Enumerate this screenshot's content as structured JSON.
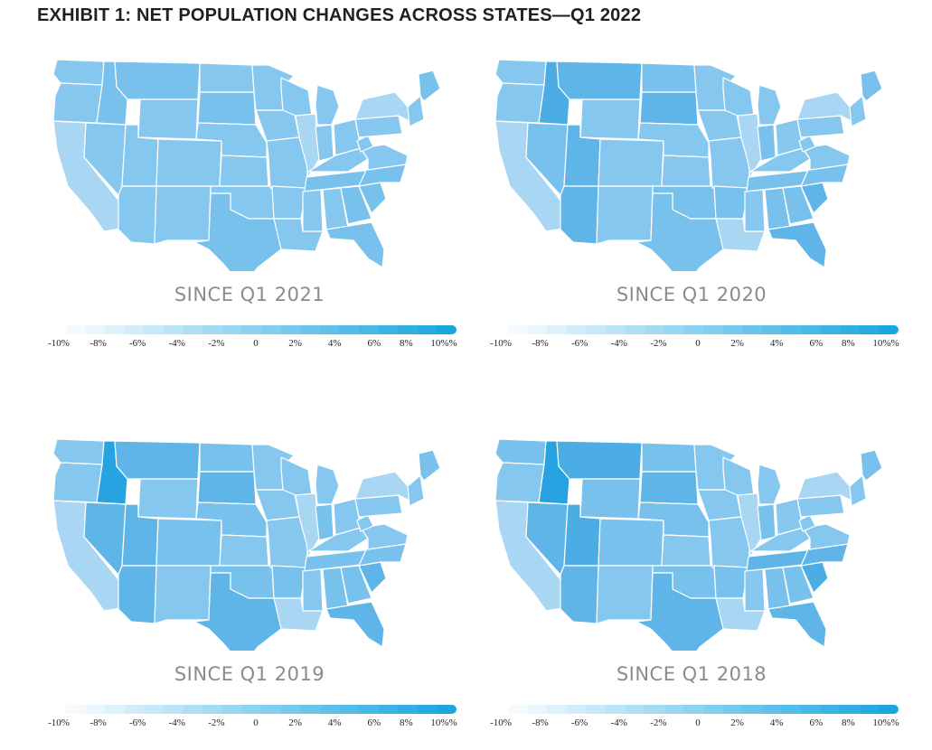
{
  "title": "EXHIBIT 1: NET POPULATION CHANGES ACROSS STATES—Q1 2022",
  "legend": {
    "ticks": [
      "-10%",
      "-8%",
      "-6%",
      "-4%",
      "-2%",
      "0",
      "2%",
      "4%",
      "6%",
      "8%",
      "10%%"
    ],
    "tick_values": [
      -10,
      -8,
      -6,
      -4,
      -2,
      0,
      2,
      4,
      6,
      8,
      10
    ],
    "color_low": "#f4fafe",
    "color_high": "#1aa6e0"
  },
  "colors": {
    "light": "#a9d6f3",
    "mid": "#86c7ef",
    "base": "#78c1ec",
    "strong": "#5fb5e8",
    "stronger": "#4cadE5",
    "strongest": "#26a3e0",
    "border": "#ffffff"
  },
  "panels": [
    {
      "label": "SINCE Q1 2021",
      "states": {
        "WA": "mid",
        "OR": "mid",
        "CA": "light",
        "ID": "base",
        "NV": "mid",
        "MT": "base",
        "WY": "mid",
        "UT": "mid",
        "AZ": "mid",
        "CO": "mid",
        "NM": "mid",
        "ND": "mid",
        "SD": "base",
        "NE": "mid",
        "KS": "mid",
        "OK": "mid",
        "TX": "base",
        "MN": "mid",
        "IA": "mid",
        "MO": "mid",
        "AR": "mid",
        "LA": "mid",
        "WI": "mid",
        "IL": "light",
        "MI": "mid",
        "IN": "mid",
        "OH": "mid",
        "KY": "mid",
        "TN": "base",
        "MS": "mid",
        "AL": "mid",
        "GA": "base",
        "FL": "base",
        "SC": "base",
        "NC": "base",
        "VA": "mid",
        "WV": "mid",
        "PA": "mid",
        "NY": "light",
        "NE_REG": "mid",
        "ME": "base"
      }
    },
    {
      "label": "SINCE Q1 2020",
      "states": {
        "WA": "mid",
        "OR": "mid",
        "CA": "light",
        "ID": "stronger",
        "NV": "base",
        "MT": "strong",
        "WY": "mid",
        "UT": "strong",
        "AZ": "strong",
        "CO": "mid",
        "NM": "mid",
        "ND": "base",
        "SD": "strong",
        "NE": "mid",
        "KS": "mid",
        "OK": "base",
        "TX": "base",
        "MN": "mid",
        "IA": "mid",
        "MO": "mid",
        "AR": "base",
        "LA": "light",
        "WI": "mid",
        "IL": "light",
        "MI": "mid",
        "IN": "base",
        "OH": "mid",
        "KY": "mid",
        "TN": "base",
        "MS": "mid",
        "AL": "base",
        "GA": "base",
        "FL": "strong",
        "SC": "strong",
        "NC": "base",
        "VA": "mid",
        "WV": "mid",
        "PA": "mid",
        "NY": "light",
        "NE_REG": "mid",
        "ME": "base"
      }
    },
    {
      "label": "SINCE Q1 2019",
      "states": {
        "WA": "mid",
        "OR": "mid",
        "CA": "light",
        "ID": "strongest",
        "NV": "strong",
        "MT": "strong",
        "WY": "mid",
        "UT": "strong",
        "AZ": "strong",
        "CO": "base",
        "NM": "mid",
        "ND": "base",
        "SD": "strong",
        "NE": "base",
        "KS": "mid",
        "OK": "base",
        "TX": "strong",
        "MN": "mid",
        "IA": "mid",
        "MO": "mid",
        "AR": "base",
        "LA": "light",
        "WI": "mid",
        "IL": "light",
        "MI": "mid",
        "IN": "base",
        "OH": "mid",
        "KY": "mid",
        "TN": "base",
        "MS": "mid",
        "AL": "base",
        "GA": "base",
        "FL": "strong",
        "SC": "strong",
        "NC": "base",
        "VA": "mid",
        "WV": "mid",
        "PA": "mid",
        "NY": "light",
        "NE_REG": "mid",
        "ME": "base"
      }
    },
    {
      "label": "SINCE Q1 2018",
      "states": {
        "WA": "base",
        "OR": "mid",
        "CA": "light",
        "ID": "strongest",
        "NV": "strong",
        "MT": "stronger",
        "WY": "base",
        "UT": "stronger",
        "AZ": "strong",
        "CO": "base",
        "NM": "mid",
        "ND": "base",
        "SD": "strong",
        "NE": "base",
        "KS": "mid",
        "OK": "base",
        "TX": "strong",
        "MN": "mid",
        "IA": "mid",
        "MO": "mid",
        "AR": "base",
        "LA": "light",
        "WI": "mid",
        "IL": "light",
        "MI": "mid",
        "IN": "base",
        "OH": "mid",
        "KY": "mid",
        "TN": "strong",
        "MS": "mid",
        "AL": "base",
        "GA": "base",
        "FL": "strong",
        "SC": "stronger",
        "NC": "strong",
        "VA": "mid",
        "WV": "mid",
        "PA": "mid",
        "NY": "light",
        "NE_REG": "mid",
        "ME": "base"
      }
    }
  ]
}
